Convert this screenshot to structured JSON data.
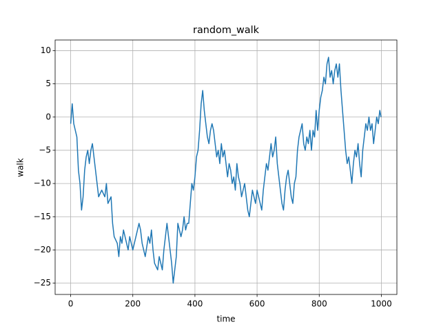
{
  "chart_data": {
    "type": "line",
    "title": "random_walk",
    "xlabel": "time",
    "ylabel": "walk",
    "x": [
      0,
      5,
      10,
      20,
      25,
      30,
      35,
      40,
      45,
      50,
      55,
      60,
      65,
      70,
      75,
      80,
      90,
      100,
      110,
      115,
      120,
      130,
      135,
      140,
      150,
      155,
      160,
      165,
      170,
      180,
      185,
      190,
      195,
      200,
      210,
      220,
      225,
      230,
      240,
      250,
      255,
      260,
      265,
      270,
      280,
      285,
      295,
      300,
      305,
      310,
      315,
      320,
      325,
      330,
      340,
      345,
      350,
      355,
      360,
      365,
      370,
      375,
      380,
      385,
      390,
      395,
      400,
      405,
      410,
      415,
      420,
      425,
      430,
      435,
      440,
      445,
      450,
      455,
      460,
      465,
      470,
      475,
      480,
      485,
      490,
      495,
      500,
      505,
      510,
      515,
      520,
      525,
      530,
      535,
      540,
      545,
      550,
      555,
      560,
      565,
      570,
      575,
      580,
      585,
      590,
      595,
      600,
      605,
      610,
      615,
      620,
      625,
      630,
      635,
      640,
      645,
      650,
      655,
      660,
      665,
      670,
      675,
      680,
      685,
      690,
      695,
      700,
      705,
      710,
      715,
      720,
      725,
      730,
      735,
      740,
      745,
      750,
      755,
      760,
      765,
      770,
      775,
      780,
      785,
      790,
      795,
      800,
      805,
      810,
      815,
      820,
      825,
      830,
      835,
      840,
      845,
      850,
      855,
      860,
      865,
      870,
      875,
      880,
      885,
      890,
      895,
      900,
      905,
      910,
      915,
      920,
      925,
      930,
      935,
      940,
      945,
      950,
      955,
      960,
      965,
      970,
      975,
      980,
      985,
      990,
      995,
      999
    ],
    "series": [
      {
        "name": "walk",
        "color": "#1f77b4",
        "values": [
          -1,
          2,
          -1,
          -3,
          -8,
          -10,
          -14,
          -12,
          -8,
          -6,
          -5,
          -7,
          -5,
          -4,
          -6,
          -8,
          -12,
          -11,
          -12,
          -10,
          -13,
          -12,
          -16,
          -18,
          -19,
          -21,
          -18,
          -19,
          -17,
          -19,
          -20,
          -18,
          -19,
          -20,
          -18,
          -16,
          -17,
          -19,
          -21,
          -18,
          -19,
          -17,
          -20,
          -22,
          -23,
          -21,
          -23,
          -20,
          -18,
          -16,
          -18,
          -20,
          -22,
          -25,
          -21,
          -16,
          -17,
          -18,
          -17,
          -15,
          -17,
          -16,
          -16,
          -13,
          -10,
          -11,
          -9,
          -6,
          -5,
          -2,
          2,
          4,
          1,
          -1,
          -3,
          -4,
          -2,
          -1,
          -2,
          -4,
          -6,
          -5,
          -7,
          -4,
          -6,
          -5,
          -7,
          -9,
          -7,
          -8,
          -10,
          -9,
          -11,
          -7,
          -9,
          -10,
          -12,
          -11,
          -10,
          -12,
          -14,
          -15,
          -13,
          -11,
          -12,
          -13,
          -11,
          -12,
          -13,
          -14,
          -11,
          -9,
          -7,
          -8,
          -6,
          -4,
          -6,
          -5,
          -3,
          -7,
          -9,
          -11,
          -13,
          -14,
          -11,
          -9,
          -8,
          -10,
          -12,
          -13,
          -10,
          -9,
          -5,
          -3,
          -2,
          -1,
          -4,
          -5,
          -3,
          -4,
          -2,
          -5,
          -2,
          -3,
          1,
          -2,
          1,
          3,
          4,
          6,
          5,
          8,
          9,
          6,
          7,
          5,
          7,
          8,
          6,
          8,
          4,
          1,
          -2,
          -5,
          -7,
          -6,
          -8,
          -10,
          -7,
          -5,
          -6,
          -4,
          -7,
          -9,
          -5,
          -3,
          -1,
          -2,
          0,
          -2,
          -1,
          -4,
          -2,
          0,
          -1,
          1,
          0
        ]
      }
    ],
    "xlim": [
      -50,
      1050
    ],
    "ylim": [
      -26.7,
      11.6
    ],
    "xticks": [
      0,
      200,
      400,
      600,
      800,
      1000
    ],
    "yticks": [
      {
        "value": -25,
        "label": "−25"
      },
      {
        "value": -20,
        "label": "−20"
      },
      {
        "value": -15,
        "label": "−15"
      },
      {
        "value": -10,
        "label": "−10"
      },
      {
        "value": -5,
        "label": "−5"
      },
      0,
      5,
      10
    ],
    "grid": true
  }
}
